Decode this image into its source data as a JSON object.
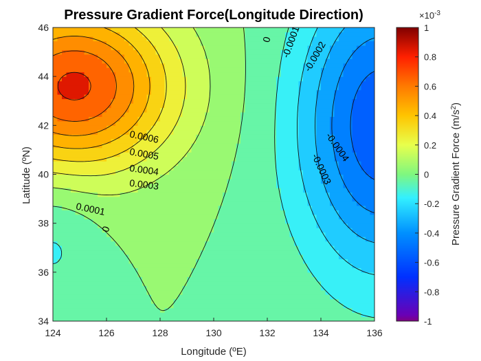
{
  "chart_data": {
    "type": "contourf",
    "title": "Pressure Gradient Force(Longitude Direction)",
    "xlabel": "Longitude (ºE)",
    "ylabel": "Latitude (ºN)",
    "xlim": [
      124,
      136
    ],
    "ylim": [
      34,
      46
    ],
    "x_ticks": [
      "124",
      "126",
      "128",
      "130",
      "132",
      "134",
      "136"
    ],
    "y_ticks": [
      "34",
      "36",
      "38",
      "40",
      "42",
      "44",
      "46"
    ],
    "grid": false,
    "colormap": "jet",
    "colorbar": {
      "label": "Pressure Gradient Force (m/s",
      "label_superscript": "2",
      "label_close": ")",
      "exponent_base": "×10",
      "exponent_power": "-3",
      "range": [
        -1,
        1
      ],
      "ticks": [
        "1",
        "0.8",
        "0.6",
        "0.4",
        "0.2",
        "0",
        "-0.2",
        "-0.4",
        "-0.6",
        "-0.8",
        "-1"
      ]
    },
    "contour_levels": [
      -0.0006,
      -0.0005,
      -0.0004,
      -0.0003,
      -0.0002,
      -0.0001,
      0,
      0.0001,
      0.0002,
      0.0003,
      0.0004,
      0.0005,
      0.0006,
      0.0007
    ],
    "contour_labels": [
      {
        "text": "0.0006",
        "lon": 127.4,
        "lat": 41.5,
        "angle": 12
      },
      {
        "text": "0.0005",
        "lon": 127.4,
        "lat": 40.8,
        "angle": 10
      },
      {
        "text": "0.0004",
        "lon": 127.4,
        "lat": 40.15,
        "angle": 8
      },
      {
        "text": "0.0003",
        "lon": 127.4,
        "lat": 39.55,
        "angle": 7
      },
      {
        "text": "0.0001",
        "lon": 125.4,
        "lat": 38.55,
        "angle": 12
      },
      {
        "text": "0",
        "lon": 126.0,
        "lat": 37.75,
        "angle": -70
      },
      {
        "text": "0",
        "lon": 132.0,
        "lat": 45.5,
        "angle": -75
      },
      {
        "text": "-0.0001",
        "lon": 132.9,
        "lat": 45.4,
        "angle": -70
      },
      {
        "text": "-0.0002",
        "lon": 133.8,
        "lat": 44.8,
        "angle": -60
      },
      {
        "text": "-0.0004",
        "lon": 134.6,
        "lat": 41.1,
        "angle": 55
      },
      {
        "text": "-0.0003",
        "lon": 134.0,
        "lat": 40.2,
        "angle": 65
      }
    ]
  }
}
